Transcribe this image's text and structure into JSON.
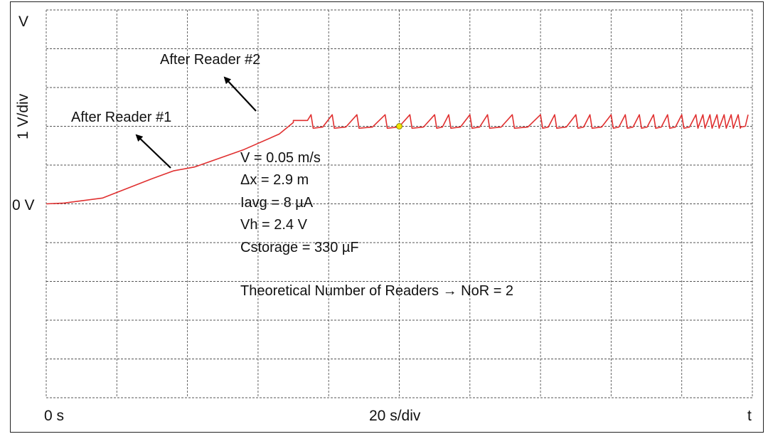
{
  "colors": {
    "trace": "#e03030",
    "grid": "#555555",
    "marker": "#f2e600"
  },
  "labels": {
    "y_unit": "V",
    "y_scale": "1 V/div",
    "y_zero": "0 V",
    "x_zero": "0 s",
    "x_scale": "20 s/div",
    "x_unit": "t"
  },
  "annotations": {
    "reader1": "After Reader #1",
    "reader2": "After Reader #2"
  },
  "info_lines": [
    "V = 0.05 m/s",
    "Δx = 2.9 m",
    "Iavg = 8 µA",
    "Vh = 2.4 V",
    "Cstorage = 330 µF",
    "Theoretical Number of Readers → NoR = 2"
  ],
  "chart_data": {
    "type": "line",
    "xlabel": "20 s/div",
    "ylabel": "1 V/div",
    "x_unit": "s",
    "y_unit": "V",
    "grid": true,
    "x_divisions": 10,
    "y_divisions": 10,
    "xlim": [
      0,
      200
    ],
    "ylim": [
      -5,
      5
    ],
    "ramp": {
      "x": [
        0,
        5,
        16,
        30,
        36,
        42,
        56,
        66,
        70
      ],
      "y": [
        0,
        0.02,
        0.15,
        0.65,
        0.85,
        0.95,
        1.4,
        1.8,
        2.1
      ]
    },
    "plateau": {
      "x_start": 70,
      "x_end": 74,
      "y": 2.15
    },
    "sawtooth": {
      "x_start": 74,
      "x_end": 198,
      "low": 1.95,
      "high": 2.3,
      "pulse_x": [
        75,
        81,
        88,
        96,
        103,
        110,
        114,
        120,
        125,
        132,
        140,
        144,
        150,
        154,
        160,
        164,
        168,
        172,
        176,
        180,
        184,
        186,
        188,
        190,
        192,
        194,
        196
      ]
    },
    "marker": {
      "x": 100,
      "y": 2.0
    }
  }
}
